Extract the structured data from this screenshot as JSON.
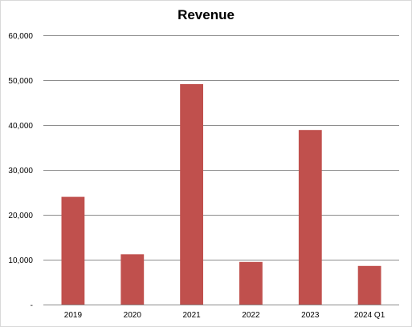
{
  "chart_data": {
    "type": "bar",
    "title": "Revenue",
    "xlabel": "",
    "ylabel": "",
    "categories": [
      "2019",
      "2020",
      "2021",
      "2022",
      "2023",
      "2024 Q1"
    ],
    "values": [
      24000,
      11200,
      49100,
      9500,
      38900,
      8600
    ],
    "ylim": [
      0,
      60000
    ],
    "yticks": [
      0,
      10000,
      20000,
      30000,
      40000,
      50000,
      60000
    ],
    "ytick_labels": [
      "-",
      "10,000",
      "20,000",
      "30,000",
      "40,000",
      "50,000",
      "60,000"
    ],
    "grid": true,
    "legend": "none",
    "bar_color": "#c0504d",
    "grid_color": "#8c8c8c"
  }
}
